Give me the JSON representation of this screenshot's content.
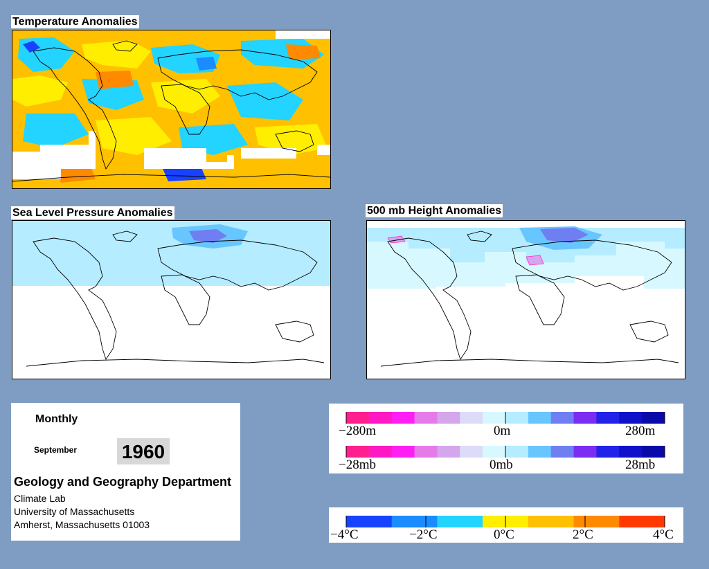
{
  "panels": {
    "temperature": {
      "title": "Temperature Anomalies"
    },
    "slp": {
      "title": "Sea Level Pressure Anomalies"
    },
    "height500": {
      "title": "500 mb Height Anomalies"
    }
  },
  "info": {
    "frequency": "Monthly",
    "month": "September",
    "year": "1960",
    "department": "Geology and Geography Department",
    "lines": [
      "Climate Lab",
      "University of Massachusetts",
      "Amherst, Massachusetts 01003"
    ]
  },
  "legends": {
    "height": {
      "labels": [
        "−280m",
        "0m",
        "280m"
      ]
    },
    "pressure": {
      "labels": [
        "−28mb",
        "0mb",
        "28mb"
      ]
    },
    "temperature": {
      "labels": [
        "−4°C",
        "−2°C",
        "0°C",
        "2°C",
        "4°C"
      ]
    }
  },
  "colors": {
    "background": "#7f9cc2",
    "anomaly_scale": [
      "#ff1f8f",
      "#ff19c4",
      "#ff1ff5",
      "#e57be8",
      "#d4a6ec",
      "#dcdcf8",
      "#d8f8ff",
      "#b5ecff",
      "#68c6ff",
      "#6f7ff2",
      "#7b2df2",
      "#2222e8",
      "#1010c8",
      "#0a0aa8"
    ],
    "temperature_scale": [
      "#1742ff",
      "#1b8cff",
      "#22d4ff",
      "#ffee00",
      "#ffc000",
      "#ff8a00",
      "#ff3a00"
    ]
  }
}
